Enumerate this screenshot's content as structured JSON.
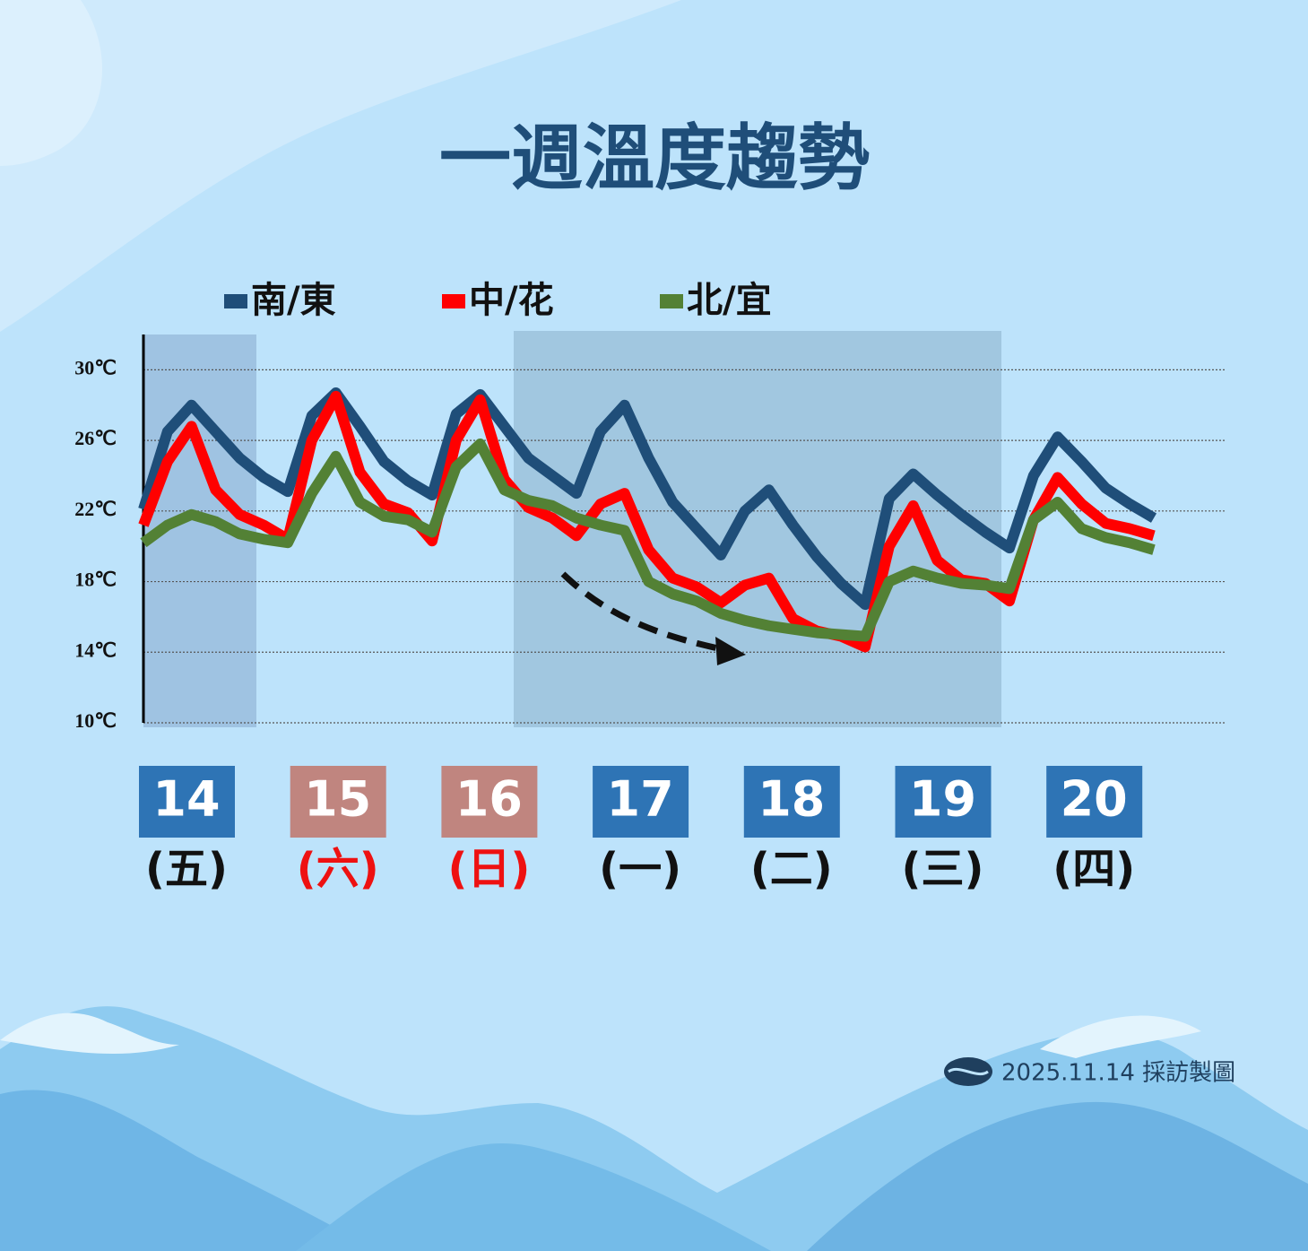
{
  "chart_data": {
    "type": "line",
    "title": "一週溫度趨勢",
    "credit": "2025.11.14 採訪製圖",
    "ylim": [
      10,
      32
    ],
    "yticks": [
      {
        "value": 10,
        "label": "10℃"
      },
      {
        "value": 14,
        "label": "14℃"
      },
      {
        "value": 18,
        "label": "18℃"
      },
      {
        "value": 22,
        "label": "22℃"
      },
      {
        "value": 26,
        "label": "26℃"
      },
      {
        "value": 30,
        "label": "30℃"
      }
    ],
    "grid": true,
    "days": [
      {
        "date": "14",
        "weekday": "(五)",
        "box_color": "#2e74b5",
        "text_color": "#111111"
      },
      {
        "date": "15",
        "weekday": "(六)",
        "box_color": "#c0857f",
        "text_color": "#ee1111"
      },
      {
        "date": "16",
        "weekday": "(日)",
        "box_color": "#c0857f",
        "text_color": "#ee1111"
      },
      {
        "date": "17",
        "weekday": "(一)",
        "box_color": "#2e74b5",
        "text_color": "#111111"
      },
      {
        "date": "18",
        "weekday": "(二)",
        "box_color": "#2e74b5",
        "text_color": "#111111"
      },
      {
        "date": "19",
        "weekday": "(三)",
        "box_color": "#2e74b5",
        "text_color": "#111111"
      },
      {
        "date": "20",
        "weekday": "(四)",
        "box_color": "#2e74b5",
        "text_color": "#111111"
      }
    ],
    "series": [
      {
        "name": "南/東",
        "color": "#1f4e79",
        "values": [
          22.1,
          26.5,
          28.0,
          26.5,
          25.0,
          23.9,
          23.1,
          27.4,
          28.7,
          26.8,
          24.8,
          23.7,
          22.9,
          27.5,
          28.6,
          26.8,
          25.0,
          24.0,
          23.0,
          26.5,
          28.0,
          25.0,
          22.5,
          21.0,
          19.5,
          22.0,
          23.2,
          21.2,
          19.4,
          17.9,
          16.7,
          22.7,
          24.1,
          22.9,
          21.8,
          20.8,
          19.9,
          24.0,
          26.2,
          24.8,
          23.3,
          22.4,
          21.6
        ]
      },
      {
        "name": "中/花",
        "color": "#ff0000",
        "values": [
          21.2,
          24.8,
          26.8,
          23.2,
          21.8,
          21.2,
          20.4,
          26.0,
          28.5,
          24.2,
          22.4,
          21.9,
          20.3,
          26.0,
          28.3,
          23.8,
          22.2,
          21.6,
          20.6,
          22.4,
          23.0,
          19.8,
          18.2,
          17.7,
          16.8,
          17.8,
          18.2,
          15.9,
          15.2,
          14.9,
          14.3,
          20.0,
          22.3,
          19.2,
          18.1,
          17.9,
          16.9,
          21.5,
          23.9,
          22.4,
          21.3,
          21.0,
          20.6
        ]
      },
      {
        "name": "北/宜",
        "color": "#538135",
        "values": [
          20.2,
          21.2,
          21.8,
          21.4,
          20.7,
          20.4,
          20.2,
          23.0,
          25.1,
          22.5,
          21.7,
          21.5,
          20.8,
          24.5,
          25.8,
          23.2,
          22.6,
          22.3,
          21.6,
          21.2,
          20.9,
          18.0,
          17.3,
          16.9,
          16.2,
          15.8,
          15.5,
          15.3,
          15.1,
          15.0,
          14.9,
          18.0,
          18.6,
          18.2,
          17.9,
          17.8,
          17.6,
          21.5,
          22.5,
          21.0,
          20.5,
          20.2,
          19.8
        ]
      }
    ]
  }
}
